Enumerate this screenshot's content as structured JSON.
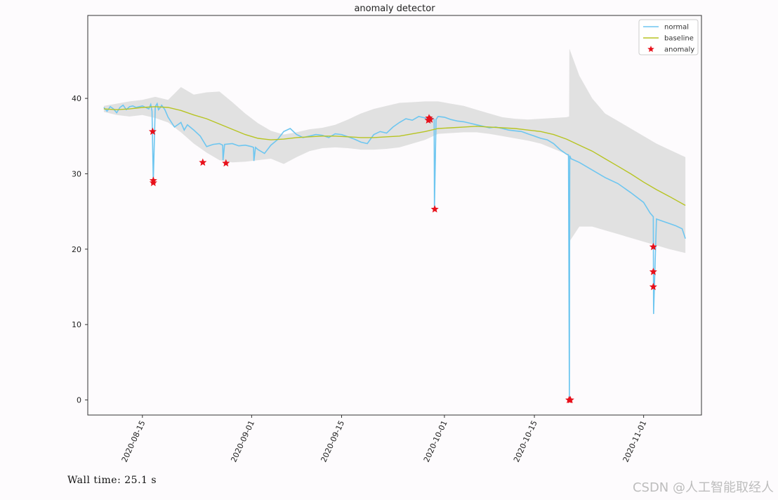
{
  "chart_data": {
    "type": "line",
    "title": "anomaly detector",
    "xlabel": "",
    "ylabel": "",
    "ylim": [
      -2,
      51
    ],
    "xlim": [
      -8.5,
      87
    ],
    "x_ticks": [
      {
        "day": 0,
        "label": "2020-08-15"
      },
      {
        "day": 17,
        "label": "2020-09-01"
      },
      {
        "day": 31,
        "label": "2020-09-15"
      },
      {
        "day": 47,
        "label": "2020-10-01"
      },
      {
        "day": 61,
        "label": "2020-10-15"
      },
      {
        "day": 78,
        "label": "2020-11-01"
      }
    ],
    "y_ticks": [
      0,
      10,
      20,
      30,
      40
    ],
    "grid": false,
    "legend": {
      "position": "top-right",
      "entries": [
        {
          "label": "normal",
          "color": "#6ec6f0"
        },
        {
          "label": "baseline",
          "color": "#b7c422"
        },
        {
          "label": "anomaly",
          "color": "#e8101a"
        }
      ]
    },
    "series": [
      {
        "name": "normal",
        "color": "#6ec6f0",
        "x": [
          -6,
          -5.5,
          -5,
          -4.5,
          -4,
          -3.5,
          -3,
          -2.5,
          -2,
          -1.5,
          -1,
          0,
          1,
          1.3,
          1.5,
          1.7,
          2,
          2.3,
          2.5,
          2.8,
          3,
          3.5,
          4,
          5,
          6,
          6.5,
          7,
          8,
          9,
          10,
          11,
          12,
          12.5,
          12.55,
          12.8,
          14,
          15,
          16,
          17,
          17.3,
          17.35,
          17.6,
          18,
          19,
          20,
          21,
          22,
          23,
          24,
          25,
          26,
          27,
          28,
          29,
          30,
          31,
          32,
          33,
          34,
          35,
          36,
          37,
          38,
          39,
          40,
          41,
          42,
          43,
          44,
          44.7,
          45,
          45.4,
          45.45,
          45.7,
          46,
          47,
          48,
          49,
          50,
          51,
          52,
          53,
          54,
          55,
          56,
          57,
          58,
          59,
          60,
          61,
          62,
          63,
          64,
          65,
          66,
          66.3,
          66.45,
          66.5,
          66.7,
          68,
          70,
          72,
          74,
          76,
          78,
          79,
          79.5,
          79.55,
          80,
          81,
          82,
          83,
          84,
          84.5
        ],
        "y": [
          38.8,
          38.3,
          38.9,
          38.6,
          38.1,
          38.8,
          39.1,
          38.5,
          38.9,
          39.0,
          38.8,
          39.0,
          38.6,
          39.2,
          38.3,
          29.0,
          38.9,
          39.3,
          38.5,
          38.8,
          39.1,
          38.5,
          37.5,
          36.2,
          36.8,
          35.8,
          36.5,
          35.8,
          35.0,
          33.6,
          33.9,
          34.0,
          33.8,
          31.8,
          33.9,
          34.0,
          33.7,
          33.8,
          33.6,
          33.5,
          31.7,
          33.5,
          33.2,
          32.7,
          33.8,
          34.5,
          35.6,
          36.0,
          35.2,
          34.8,
          35.0,
          35.2,
          35.1,
          34.8,
          35.3,
          35.2,
          34.9,
          34.6,
          34.2,
          34.0,
          35.2,
          35.6,
          35.4,
          36.2,
          36.8,
          37.3,
          37.1,
          37.6,
          37.4,
          36.8,
          37.4,
          37.2,
          25.3,
          37.2,
          37.6,
          37.5,
          37.2,
          37.0,
          36.9,
          36.7,
          36.5,
          36.3,
          36.1,
          36.2,
          36.0,
          35.8,
          35.7,
          35.6,
          35.3,
          35.0,
          34.7,
          34.5,
          34.0,
          33.2,
          32.6,
          32.5,
          0.0,
          32.4,
          32.0,
          31.5,
          30.5,
          29.5,
          28.7,
          27.5,
          26.2,
          24.8,
          24.3,
          11.4,
          24.0,
          23.7,
          23.4,
          23.1,
          22.7,
          21.4
        ]
      },
      {
        "name": "baseline",
        "color": "#b7c422",
        "x": [
          -6,
          -4,
          -2,
          0,
          2,
          4,
          6,
          8,
          10,
          12,
          14,
          16,
          18,
          20,
          22,
          24,
          26,
          28,
          30,
          32,
          34,
          36,
          38,
          40,
          42,
          44,
          46,
          48,
          50,
          52,
          54,
          56,
          58,
          60,
          62,
          64,
          66,
          68,
          70,
          72,
          74,
          76,
          78,
          80,
          82,
          84.5
        ],
        "y": [
          38.6,
          38.5,
          38.6,
          38.8,
          38.9,
          38.8,
          38.4,
          37.8,
          37.3,
          36.6,
          35.9,
          35.2,
          34.7,
          34.5,
          34.6,
          34.8,
          34.9,
          35.0,
          35.0,
          34.9,
          34.8,
          34.8,
          34.9,
          35.0,
          35.3,
          35.6,
          36.0,
          36.1,
          36.2,
          36.3,
          36.2,
          36.1,
          36.0,
          35.8,
          35.6,
          35.2,
          34.6,
          33.8,
          33.0,
          32.0,
          31.0,
          30.0,
          28.9,
          27.9,
          27.0,
          25.8
        ]
      }
    ],
    "confidence_band": {
      "x": [
        -6,
        -4,
        -2,
        0,
        2,
        4,
        6,
        8,
        10,
        12,
        14,
        16,
        18,
        20,
        22,
        24,
        26,
        28,
        30,
        32,
        34,
        36,
        38,
        40,
        42,
        44,
        46,
        48,
        50,
        52,
        54,
        56,
        58,
        60,
        62,
        64,
        66,
        66.4,
        66.45,
        68,
        70,
        72,
        74,
        76,
        78,
        80,
        82,
        84.5
      ],
      "upper": [
        39.0,
        39.3,
        39.6,
        39.8,
        40.2,
        39.8,
        41.5,
        40.5,
        40.8,
        40.9,
        39.5,
        38.0,
        36.7,
        35.7,
        35.2,
        35.5,
        35.9,
        36.1,
        36.5,
        37.2,
        38.0,
        38.6,
        39.0,
        39.4,
        39.5,
        39.6,
        39.6,
        39.3,
        39.0,
        38.5,
        38.0,
        37.5,
        37.3,
        37.2,
        37.3,
        37.4,
        37.5,
        37.6,
        46.6,
        43.0,
        40.0,
        38.0,
        37.0,
        36.0,
        35.0,
        34.0,
        33.2,
        32.2
      ],
      "lower": [
        38.2,
        37.8,
        37.6,
        37.8,
        37.4,
        36.8,
        35.5,
        34.0,
        32.8,
        31.8,
        31.5,
        31.6,
        31.8,
        32.0,
        31.3,
        32.2,
        33.0,
        33.4,
        33.5,
        33.4,
        33.2,
        33.2,
        33.3,
        33.5,
        34.0,
        34.5,
        35.3,
        35.4,
        35.5,
        35.5,
        35.3,
        35.0,
        34.7,
        34.4,
        34.0,
        33.3,
        32.6,
        32.0,
        21.0,
        23.0,
        23.0,
        22.5,
        22.0,
        21.5,
        21.0,
        20.5,
        20.0,
        19.5
      ]
    },
    "anomalies": [
      {
        "x": 1.6,
        "y": 35.6
      },
      {
        "x": 1.7,
        "y": 29.1
      },
      {
        "x": 1.7,
        "y": 28.8
      },
      {
        "x": 9.4,
        "y": 31.5
      },
      {
        "x": 13.0,
        "y": 31.4
      },
      {
        "x": 44.5,
        "y": 37.1
      },
      {
        "x": 44.6,
        "y": 37.4
      },
      {
        "x": 44.8,
        "y": 37.2
      },
      {
        "x": 45.5,
        "y": 25.3
      },
      {
        "x": 66.4,
        "y": 0.0
      },
      {
        "x": 66.6,
        "y": 0.0
      },
      {
        "x": 79.5,
        "y": 20.3
      },
      {
        "x": 79.5,
        "y": 17.0
      },
      {
        "x": 79.5,
        "y": 15.0
      }
    ]
  },
  "footer": {
    "wall_time": "Wall time: 25.1 s",
    "watermark": "CSDN @人工智能取经人"
  }
}
